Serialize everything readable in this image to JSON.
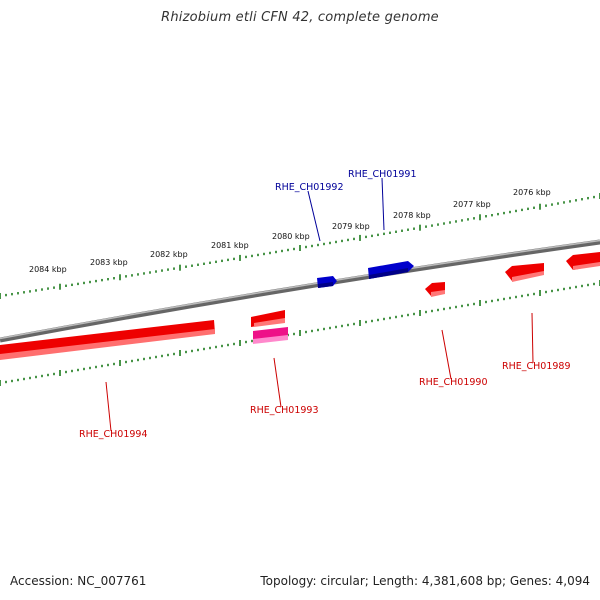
{
  "title": "Rhizobium etli CFN 42, complete genome",
  "footer": {
    "accession": "Accession: NC_007761",
    "summary": "Topology: circular; Length: 4,381,608 bp; Genes: 4,094"
  },
  "colors": {
    "forward_gene": "#0000cc",
    "reverse_gene": "#ee0000",
    "rna_gene": "#ee1188",
    "label_forward": "#000099",
    "label_reverse": "#cc0000",
    "tick": "#1a7a1a",
    "backbone": "#888888"
  },
  "scale_labels": [
    "2084 kbp",
    "2083 kbp",
    "2082 kbp",
    "2081 kbp",
    "2080 kbp",
    "2079 kbp",
    "2078 kbp",
    "2077 kbp",
    "2076 kbp"
  ],
  "genes": [
    {
      "label": "RHE_CH01992",
      "strand": "forward"
    },
    {
      "label": "RHE_CH01991",
      "strand": "forward"
    },
    {
      "label": "RHE_CH01994",
      "strand": "reverse"
    },
    {
      "label": "RHE_CH01993",
      "strand": "reverse"
    },
    {
      "label": "RHE_CH01990",
      "strand": "reverse"
    },
    {
      "label": "RHE_CH01989",
      "strand": "reverse"
    }
  ]
}
